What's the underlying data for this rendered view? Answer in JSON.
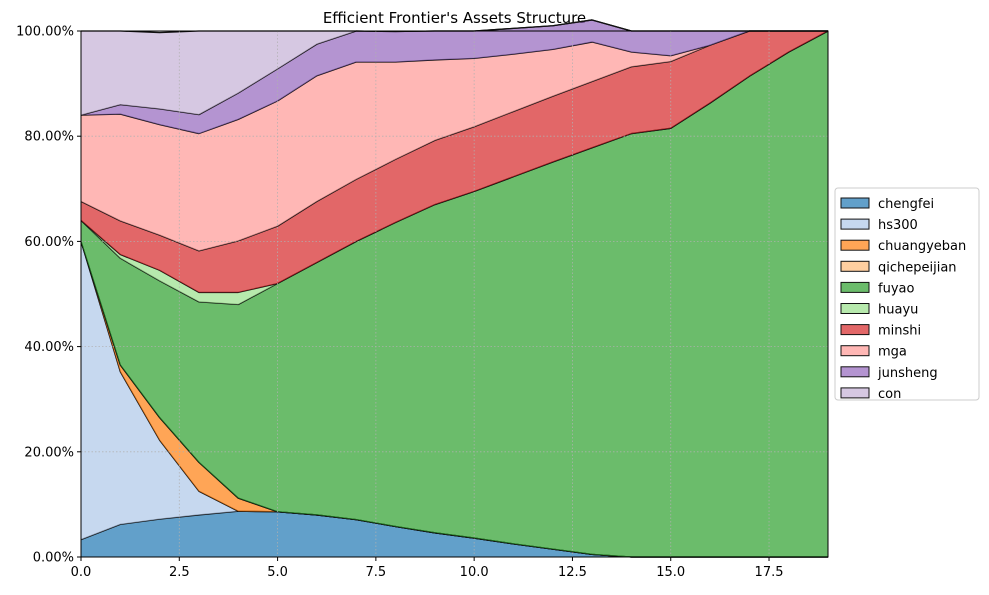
{
  "chart_data": {
    "type": "area",
    "title": "Efficient Frontier's Assets Structure",
    "xlabel": "",
    "ylabel": "",
    "xlim": [
      0,
      19
    ],
    "ylim": [
      0,
      100
    ],
    "x_ticks": [
      0,
      2.5,
      5,
      7.5,
      10,
      12.5,
      15,
      17.5
    ],
    "x_tick_labels": [
      "0.0",
      "2.5",
      "5.0",
      "7.5",
      "10.0",
      "12.5",
      "15.0",
      "17.5"
    ],
    "y_ticks": [
      0,
      20,
      40,
      60,
      80,
      100
    ],
    "y_tick_labels": [
      "0.00%",
      "20.00%",
      "40.00%",
      "60.00%",
      "80.00%",
      "100.00%"
    ],
    "grid": true,
    "stacked": true,
    "legend_position": "right",
    "x": [
      0,
      1,
      2,
      3,
      4,
      5,
      6,
      7,
      8,
      9,
      10,
      11,
      12,
      13,
      14,
      15,
      16,
      17,
      18,
      19
    ],
    "series": [
      {
        "name": "chengfei",
        "color": "#1f77b4",
        "values": [
          3.3,
          6.2,
          7.2,
          8.0,
          8.7,
          8.6,
          8.0,
          7.1,
          5.8,
          4.6,
          3.6,
          2.5,
          1.5,
          0.5,
          0,
          0,
          0,
          0,
          0,
          0
        ]
      },
      {
        "name": "hs300",
        "color": "#aec7e8",
        "values": [
          56.7,
          29,
          15,
          4.5,
          0,
          0,
          0,
          0,
          0,
          0,
          0,
          0,
          0,
          0,
          0,
          0,
          0,
          0,
          0,
          0
        ]
      },
      {
        "name": "chuangyeban",
        "color": "#ff7f0e",
        "values": [
          0,
          1.3,
          4.3,
          5.5,
          2.5,
          0,
          0,
          0,
          0,
          0,
          0,
          0,
          0,
          0,
          0,
          0,
          0,
          0,
          0,
          0
        ]
      },
      {
        "name": "qichepeijian",
        "color": "#ffbb78",
        "values": [
          0,
          0,
          0,
          0,
          0,
          0,
          0,
          0,
          0,
          0,
          0,
          0,
          0,
          0,
          0,
          0,
          0,
          0,
          0,
          0
        ]
      },
      {
        "name": "fuyao",
        "color": "#2ca02c",
        "values": [
          4.0,
          20.3,
          26.0,
          30.5,
          36.8,
          43.4,
          48.0,
          52.9,
          57.8,
          62.4,
          65.9,
          69.8,
          73.6,
          77.3,
          80.5,
          81.5,
          86.3,
          91.4,
          96.0,
          100
        ]
      },
      {
        "name": "huayu",
        "color": "#98df8a",
        "values": [
          0,
          0.7,
          2.0,
          1.8,
          2.3,
          0,
          0,
          0,
          0,
          0,
          0,
          0,
          0,
          0,
          0,
          0,
          0,
          0,
          0,
          0
        ]
      },
      {
        "name": "minshi",
        "color": "#d62728",
        "values": [
          3.6,
          6.4,
          6.7,
          7.9,
          9.8,
          10.9,
          11.6,
          11.8,
          12.0,
          12.2,
          12.3,
          12.4,
          12.5,
          12.6,
          12.7,
          12.7,
          11.0,
          8.6,
          4.0,
          0
        ]
      },
      {
        "name": "mga",
        "color": "#ff9896",
        "values": [
          16.4,
          20.3,
          21.0,
          22.3,
          23.1,
          23.8,
          23.9,
          22.3,
          18.5,
          15.3,
          13.0,
          10.9,
          8.9,
          7.5,
          2.8,
          1.1,
          0,
          0,
          0,
          0
        ]
      },
      {
        "name": "junsheng",
        "color": "#9467bd",
        "values": [
          0,
          1.8,
          3.0,
          3.6,
          5.0,
          6.1,
          6.0,
          5.9,
          5.8,
          5.5,
          5.2,
          4.9,
          4.5,
          4.2,
          4.0,
          4.7,
          2.7,
          0,
          0,
          0
        ]
      },
      {
        "name": "con",
        "color": "#c5b0d5",
        "values": [
          16.0,
          14.0,
          14.5,
          15.9,
          11.8,
          7.2,
          2.5,
          0,
          0,
          0,
          0,
          0,
          0,
          0,
          0,
          0,
          0,
          0,
          0,
          0
        ]
      }
    ]
  }
}
